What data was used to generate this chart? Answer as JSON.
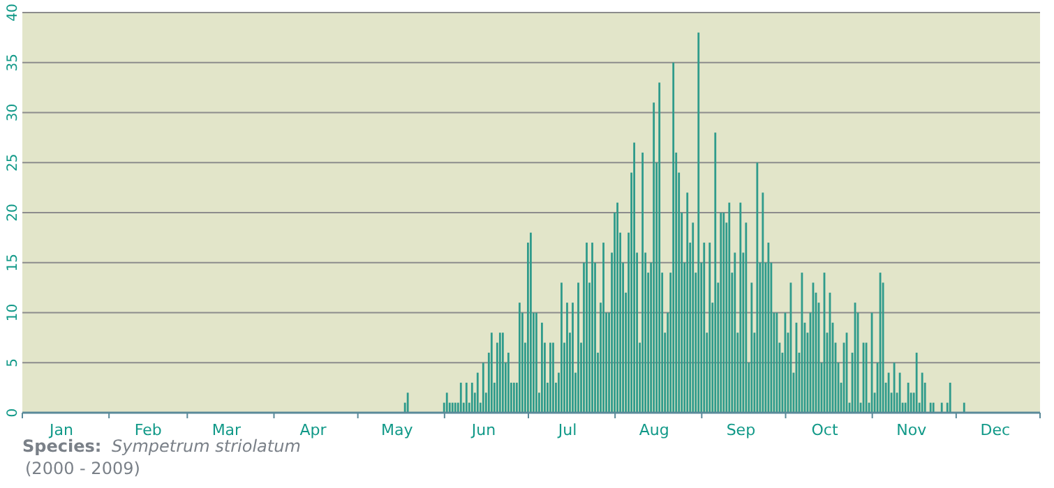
{
  "chart_data": {
    "type": "bar",
    "color": "#2f9b8b",
    "x": [
      "--05-18",
      "--05-19",
      "--05-20",
      "--05-21",
      "--05-22",
      "--05-23",
      "--05-24",
      "--05-25",
      "--05-26",
      "--05-27",
      "--05-28",
      "--05-29",
      "--05-30",
      "--05-31",
      "--06-01",
      "--06-02",
      "--06-03",
      "--06-04",
      "--06-05",
      "--06-06",
      "--06-07",
      "--06-08",
      "--06-09",
      "--06-10",
      "--06-11",
      "--06-12",
      "--06-13",
      "--06-14",
      "--06-15",
      "--06-16",
      "--06-17",
      "--06-18",
      "--06-19",
      "--06-20",
      "--06-21",
      "--06-22",
      "--06-23",
      "--06-24",
      "--06-25",
      "--06-26",
      "--06-27",
      "--06-28",
      "--06-29",
      "--06-30",
      "--07-01",
      "--07-02",
      "--07-03",
      "--07-04",
      "--07-05",
      "--07-06",
      "--07-07",
      "--07-08",
      "--07-09",
      "--07-10",
      "--07-11",
      "--07-12",
      "--07-13",
      "--07-14",
      "--07-15",
      "--07-16",
      "--07-17",
      "--07-18",
      "--07-19",
      "--07-20",
      "--07-21",
      "--07-22",
      "--07-23",
      "--07-24",
      "--07-25",
      "--07-26",
      "--07-27",
      "--07-28",
      "--07-29",
      "--07-30",
      "--07-31",
      "--08-01",
      "--08-02",
      "--08-03",
      "--08-04",
      "--08-05",
      "--08-06",
      "--08-07",
      "--08-08",
      "--08-09",
      "--08-10",
      "--08-11",
      "--08-12",
      "--08-13",
      "--08-14",
      "--08-15",
      "--08-16",
      "--08-17",
      "--08-18",
      "--08-19",
      "--08-20",
      "--08-21",
      "--08-22",
      "--08-23",
      "--08-24",
      "--08-25",
      "--08-26",
      "--08-27",
      "--08-28",
      "--08-29",
      "--08-30",
      "--08-31",
      "--09-01",
      "--09-02",
      "--09-03",
      "--09-04",
      "--09-05",
      "--09-06",
      "--09-07",
      "--09-08",
      "--09-09",
      "--09-10",
      "--09-11",
      "--09-12",
      "--09-13",
      "--09-14",
      "--09-15",
      "--09-16",
      "--09-17",
      "--09-18",
      "--09-19",
      "--09-20",
      "--09-21",
      "--09-22",
      "--09-23",
      "--09-24",
      "--09-25",
      "--09-26",
      "--09-27",
      "--09-28",
      "--09-29",
      "--09-30",
      "--10-01",
      "--10-02",
      "--10-03",
      "--10-04",
      "--10-05",
      "--10-06",
      "--10-07",
      "--10-08",
      "--10-09",
      "--10-10",
      "--10-11",
      "--10-12",
      "--10-13",
      "--10-14",
      "--10-15",
      "--10-16",
      "--10-17",
      "--10-18",
      "--10-19",
      "--10-20",
      "--10-21",
      "--10-22",
      "--10-23",
      "--10-24",
      "--10-25",
      "--10-26",
      "--10-27",
      "--10-28",
      "--10-29",
      "--10-30",
      "--10-31",
      "--11-01",
      "--11-02",
      "--11-03",
      "--11-04",
      "--11-05",
      "--11-06",
      "--11-07",
      "--11-08",
      "--11-09",
      "--11-10",
      "--11-11",
      "--11-12",
      "--11-13",
      "--11-14",
      "--11-15",
      "--11-16",
      "--11-17",
      "--11-18",
      "--11-19",
      "--11-20",
      "--11-21",
      "--11-22",
      "--11-23",
      "--11-24",
      "--11-25",
      "--11-26",
      "--11-27",
      "--11-28",
      "--11-29",
      "--11-30",
      "--12-01",
      "--12-02",
      "--12-03",
      "--12-04"
    ],
    "values": [
      1,
      2,
      0,
      0,
      0,
      0,
      0,
      0,
      0,
      0,
      0,
      0,
      0,
      0,
      1,
      2,
      1,
      1,
      1,
      1,
      3,
      1,
      3,
      1,
      3,
      2,
      4,
      1,
      5,
      2,
      6,
      8,
      3,
      7,
      8,
      8,
      5,
      6,
      3,
      3,
      3,
      11,
      10,
      7,
      17,
      18,
      10,
      10,
      2,
      9,
      7,
      3,
      7,
      7,
      3,
      4,
      13,
      7,
      11,
      8,
      11,
      4,
      13,
      7,
      15,
      17,
      13,
      17,
      15,
      6,
      11,
      17,
      10,
      10,
      16,
      20,
      21,
      18,
      15,
      12,
      18,
      24,
      27,
      16,
      7,
      26,
      16,
      14,
      15,
      31,
      25,
      33,
      14,
      8,
      10,
      14,
      35,
      26,
      24,
      20,
      15,
      22,
      17,
      19,
      14,
      38,
      15,
      17,
      8,
      17,
      11,
      28,
      13,
      20,
      20,
      19,
      21,
      14,
      16,
      8,
      21,
      16,
      19,
      5,
      13,
      8,
      25,
      15,
      22,
      15,
      17,
      15,
      10,
      10,
      7,
      6,
      10,
      8,
      13,
      4,
      9,
      6,
      14,
      9,
      8,
      10,
      13,
      12,
      11,
      5,
      14,
      8,
      12,
      9,
      7,
      5,
      3,
      7,
      8,
      1,
      6,
      11,
      10,
      1,
      7,
      7,
      1,
      10,
      2,
      5,
      14,
      13,
      3,
      4,
      2,
      5,
      2,
      4,
      1,
      1,
      3,
      2,
      2,
      6,
      1,
      4,
      3,
      0,
      1,
      1,
      0,
      0,
      1,
      0,
      1,
      3,
      0,
      0,
      0,
      0,
      1
    ],
    "xlim": [
      "--01-01",
      "--12-31"
    ],
    "xticks": [
      {
        "value": "--01-01",
        "label": null
      },
      {
        "value": "--01-15",
        "label": "Jan"
      },
      {
        "value": "--02-01",
        "label": null
      },
      {
        "value": "--02-15",
        "label": "Feb"
      },
      {
        "value": "--03-01",
        "label": null
      },
      {
        "value": "--03-15",
        "label": "Mar"
      },
      {
        "value": "--04-01",
        "label": null
      },
      {
        "value": "--04-15",
        "label": "Apr"
      },
      {
        "value": "--05-01",
        "label": null
      },
      {
        "value": "--05-15",
        "label": "May"
      },
      {
        "value": "--06-01",
        "label": null
      },
      {
        "value": "--06-15",
        "label": "Jun"
      },
      {
        "value": "--07-01",
        "label": null
      },
      {
        "value": "--07-15",
        "label": "Jul"
      },
      {
        "value": "--08-01",
        "label": null
      },
      {
        "value": "--08-15",
        "label": "Aug"
      },
      {
        "value": "--09-01",
        "label": null
      },
      {
        "value": "--09-15",
        "label": "Sep"
      },
      {
        "value": "--10-01",
        "label": null
      },
      {
        "value": "--10-15",
        "label": "Oct"
      },
      {
        "value": "--11-01",
        "label": null
      },
      {
        "value": "--11-15",
        "label": "Nov"
      },
      {
        "value": "--12-01",
        "label": null
      },
      {
        "value": "--12-15",
        "label": "Dec"
      },
      {
        "value": "--12-31",
        "label": null
      }
    ],
    "ylim": [
      0,
      40
    ],
    "yticks": [
      0,
      5,
      10,
      15,
      20,
      25,
      30,
      35,
      40
    ],
    "grid": "y",
    "annotations": [
      "Species:",
      "Sympetrum striolatum",
      "(2000 - 2009)"
    ]
  }
}
